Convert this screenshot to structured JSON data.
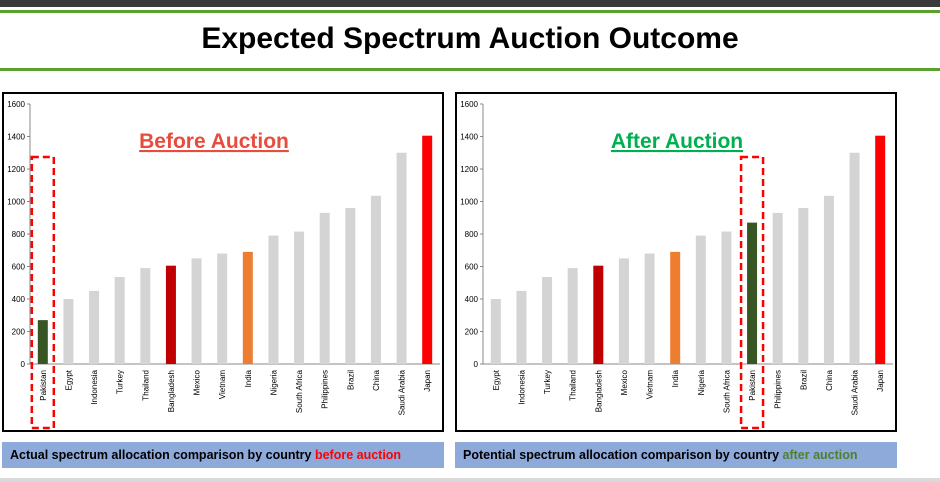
{
  "title": "Expected Spectrum Auction Outcome",
  "colors": {
    "bar_default": "#d4d4d4",
    "bar_bangladesh": "#c00000",
    "bar_india": "#ed7d31",
    "bar_pakistan": "#375623",
    "bar_japan": "#ff0000",
    "before_label": "#e74c3c",
    "after_label": "#00b050",
    "highlight_box": "#ff0000"
  },
  "chart_data": [
    {
      "type": "bar",
      "title": "Before Auction",
      "ylim": [
        0,
        1600
      ],
      "yticks": [
        "0",
        "200",
        "400",
        "600",
        "800",
        "1000",
        "1200",
        "1400",
        "1600"
      ],
      "highlight": "Pakistan",
      "categories": [
        "Pakistan",
        "Egypt",
        "Indonesia",
        "Turkey",
        "Thailand",
        "Bangladesh",
        "Mexico",
        "Vietnam",
        "India",
        "Nigeria",
        "South Africa",
        "Philippines",
        "Brazil",
        "China",
        "Saudi Arabia",
        "Japan"
      ],
      "values": [
        270,
        400,
        450,
        535,
        590,
        605,
        650,
        680,
        690,
        790,
        815,
        930,
        960,
        1035,
        1300,
        1405
      ],
      "caption_text": "Actual spectrum allocation comparison by country ",
      "caption_highlight": "before auction"
    },
    {
      "type": "bar",
      "title": "After Auction",
      "ylim": [
        0,
        1600
      ],
      "yticks": [
        "0",
        "200",
        "400",
        "600",
        "800",
        "1000",
        "1200",
        "1400",
        "1600"
      ],
      "highlight": "Pakistan",
      "categories": [
        "Egypt",
        "Indonesia",
        "Turkey",
        "Thailand",
        "Bangladesh",
        "Mexico",
        "Vietnam",
        "India",
        "Nigeria",
        "South Africa",
        "Pakistan",
        "Philippines",
        "Brazil",
        "China",
        "Saudi Arabia",
        "Japan"
      ],
      "values": [
        400,
        450,
        535,
        590,
        605,
        650,
        680,
        690,
        790,
        815,
        870,
        930,
        960,
        1035,
        1300,
        1405
      ],
      "caption_text": "Potential spectrum allocation comparison by country ",
      "caption_highlight": "after auction"
    }
  ]
}
